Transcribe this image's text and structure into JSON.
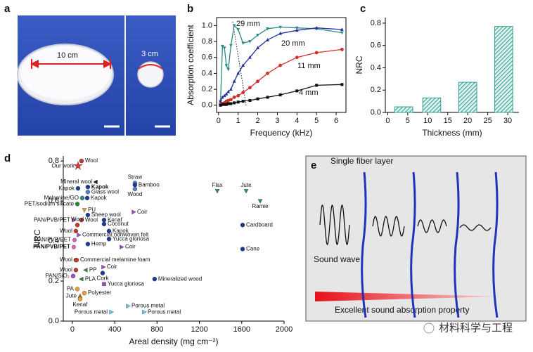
{
  "panel_a": {
    "label": "a",
    "left_size": "10 cm",
    "right_size": "3 cm"
  },
  "chart_data": [
    {
      "type": "line",
      "panel_label": "b",
      "x_label": "Frequency (kHz)",
      "y_label": "Absorption coefficient",
      "x": [
        0.1,
        0.2,
        0.3,
        0.4,
        0.5,
        0.63,
        0.8,
        1.0,
        1.25,
        1.6,
        2.0,
        2.5,
        3.15,
        4.0,
        5.0,
        6.3
      ],
      "series": [
        {
          "name": "29 mm",
          "color": "#2a8c83",
          "marker": "tri-down",
          "values": [
            0.05,
            0.74,
            0.72,
            0.5,
            0.45,
            0.75,
            1.0,
            0.95,
            0.78,
            0.8,
            0.88,
            0.96,
            0.98,
            0.97,
            0.96,
            0.91
          ]
        },
        {
          "name": "20 mm",
          "color": "#1f2fa0",
          "marker": "tri-up",
          "values": [
            0.05,
            0.1,
            0.12,
            0.14,
            0.17,
            0.2,
            0.3,
            0.4,
            0.5,
            0.6,
            0.72,
            0.82,
            0.9,
            0.94,
            0.97,
            0.95
          ]
        },
        {
          "name": "11 mm",
          "color": "#d0302a",
          "marker": "circle",
          "values": [
            0.01,
            0.02,
            0.03,
            0.05,
            0.06,
            0.07,
            0.1,
            0.12,
            0.16,
            0.22,
            0.3,
            0.4,
            0.5,
            0.6,
            0.66,
            0.7
          ]
        },
        {
          "name": "4 mm",
          "color": "#111111",
          "marker": "square",
          "values": [
            0.0,
            0.01,
            0.01,
            0.01,
            0.02,
            0.02,
            0.03,
            0.04,
            0.05,
            0.06,
            0.08,
            0.1,
            0.13,
            0.18,
            0.25,
            0.26
          ]
        }
      ],
      "xlim": [
        -0.1,
        6.5
      ],
      "xticks": [
        0,
        1,
        2,
        3,
        4,
        5,
        6
      ],
      "ylim": [
        -0.09,
        1.1
      ],
      "yticks": [
        {
          "value": 0,
          "label": "0.0"
        },
        0.2,
        0.4,
        0.6,
        0.8,
        {
          "value": 1,
          "label": "1.0"
        }
      ]
    },
    {
      "type": "bar",
      "panel_label": "c",
      "x_label": "Thickness (mm)",
      "y_label": "NRC",
      "color": "#2a9d8f",
      "x": [
        4,
        11,
        20,
        29
      ],
      "values": [
        0.05,
        0.13,
        0.27,
        0.77
      ],
      "xlim": [
        -0.6,
        32.8
      ],
      "xticks": [
        0,
        5,
        10,
        15,
        20,
        25,
        30
      ],
      "ylim": [
        0,
        0.85
      ],
      "yticks": [
        {
          "value": 0,
          "label": "0.0"
        },
        0.2,
        0.4,
        0.6,
        0.8
      ]
    },
    {
      "type": "scatter",
      "panel_label": "d",
      "x_label": "Areal density (mg cm⁻²)",
      "y_label": "NRC",
      "xlim": [
        -86,
        2000
      ],
      "xticks": [
        0,
        400,
        800,
        1200,
        1600,
        2000
      ],
      "ylim": [
        0,
        0.825
      ],
      "yticks": [
        {
          "value": 0,
          "label": "0.0"
        },
        0.2,
        0.4,
        0.6,
        0.8
      ],
      "points": [
        {
          "label": "Our work",
          "x": 53,
          "y": 0.775,
          "color": "#e53030",
          "marker": "star"
        },
        {
          "label": "Wool",
          "x": 86,
          "y": 0.8,
          "color": "#c0392b",
          "marker": "circle"
        },
        {
          "label": "Mineral wool",
          "x": 220,
          "y": 0.695,
          "color": "#222222",
          "marker": "tri-left"
        },
        {
          "label": "Kapok",
          "x": 146,
          "y": 0.67,
          "color": "#1f3a93",
          "marker": "circle"
        },
        {
          "label": "Kapok",
          "x": 53,
          "y": 0.663,
          "color": "#1f3a93",
          "marker": "circle"
        },
        {
          "label": "Glass wool",
          "x": 146,
          "y": 0.645,
          "color": "#5a7fc0",
          "marker": "circle"
        },
        {
          "label": "Straw",
          "x": 591,
          "y": 0.69,
          "color": "#5a7fc0",
          "marker": "circle"
        },
        {
          "label": "Bamboo",
          "x": 591,
          "y": 0.68,
          "color": "#1f3a93",
          "marker": "circle"
        },
        {
          "label": "Wood",
          "x": 591,
          "y": 0.66,
          "color": "#5a7fc0",
          "marker": "circle"
        },
        {
          "label": "Melamine/GO",
          "x": 93,
          "y": 0.615,
          "color": "#2a8c83",
          "marker": "circle"
        },
        {
          "label": "Kapok",
          "x": 140,
          "y": 0.615,
          "color": "#1f3a93",
          "marker": "circle"
        },
        {
          "label": "PET/sodium silicate",
          "x": 47,
          "y": 0.585,
          "color": "#2e8b2e",
          "marker": "circle"
        },
        {
          "label": "Flax",
          "x": 1369,
          "y": 0.65,
          "color": "#2a8c83",
          "marker": "tri-down"
        },
        {
          "label": "Jute",
          "x": 1641,
          "y": 0.65,
          "color": "#2a8c83",
          "marker": "tri-down"
        },
        {
          "label": "Ramie",
          "x": 1774,
          "y": 0.6,
          "color": "#2a8c83",
          "marker": "tri-down"
        },
        {
          "label": "PU",
          "x": 113,
          "y": 0.555,
          "color": "#e8a030",
          "marker": "tri-down"
        },
        {
          "label": "Coir",
          "x": 578,
          "y": 0.545,
          "color": "#9b4fc4",
          "marker": "tri-right"
        },
        {
          "label": "Sheep wool",
          "x": 146,
          "y": 0.53,
          "color": "#1f3a93",
          "marker": "circle"
        },
        {
          "label": "PAN/PVB/PET",
          "x": 13,
          "y": 0.505,
          "color": "#9b4fc4",
          "marker": "tri-right"
        },
        {
          "label": "Wool",
          "x": 86,
          "y": 0.505,
          "color": "#c0392b",
          "marker": "circle"
        },
        {
          "label": "Kenaf",
          "x": 299,
          "y": 0.505,
          "color": "#1f3a93",
          "marker": "circle"
        },
        {
          "label": "Coconut",
          "x": 299,
          "y": 0.485,
          "color": "#1f3a93",
          "marker": "circle"
        },
        {
          "label": "Wool",
          "x": 47,
          "y": 0.48,
          "color": "#c0392b",
          "marker": "circle"
        },
        {
          "label": "Cardboard",
          "x": 1608,
          "y": 0.48,
          "color": "#1f3a93",
          "marker": "circle"
        },
        {
          "label": "Kapok",
          "x": 346,
          "y": 0.45,
          "color": "#1f3a93",
          "marker": "circle"
        },
        {
          "label": "Wool",
          "x": 33,
          "y": 0.45,
          "color": "#c0392b",
          "marker": "circle"
        },
        {
          "label": "Commercial nonwoven felt",
          "x": 60,
          "y": 0.43,
          "color": "#9b4fc4",
          "marker": "tri-right"
        },
        {
          "label": "PAN/PVB/PET",
          "x": 20,
          "y": 0.405,
          "color": "#e060c0",
          "marker": "hexagon"
        },
        {
          "label": "Yucca gloriosa",
          "x": 346,
          "y": 0.41,
          "color": "#1f3a93",
          "marker": "circle"
        },
        {
          "label": "Hemp",
          "x": 146,
          "y": 0.385,
          "color": "#1f3a93",
          "marker": "circle"
        },
        {
          "label": "Coir",
          "x": 465,
          "y": 0.37,
          "color": "#9b4fc4",
          "marker": "tri-right"
        },
        {
          "label": "PAN/PVB/PET",
          "x": 13,
          "y": 0.37,
          "color": "#e060c0",
          "marker": "hexagon"
        },
        {
          "label": "Cane",
          "x": 1608,
          "y": 0.36,
          "color": "#1f3a93",
          "marker": "circle"
        },
        {
          "label": "Wool",
          "x": 33,
          "y": 0.305,
          "color": "#c0392b",
          "marker": "circle"
        },
        {
          "label": "Commercial melamine foam",
          "x": 40,
          "y": 0.305,
          "color": "#c0392b",
          "marker": "circle"
        },
        {
          "label": "Coir",
          "x": 292,
          "y": 0.27,
          "color": "#9b4fc4",
          "marker": "tri-right"
        },
        {
          "label": "Wool",
          "x": 33,
          "y": 0.255,
          "color": "#c0392b",
          "marker": "circle"
        },
        {
          "label": "PP",
          "x": 126,
          "y": 0.255,
          "color": "#2e8b2e",
          "marker": "tri-left"
        },
        {
          "label": "Cork",
          "x": 286,
          "y": 0.24,
          "color": "#1f3a93",
          "marker": "circle"
        },
        {
          "label": "Mineralized wood",
          "x": 777,
          "y": 0.21,
          "color": "#1f3a93",
          "marker": "circle"
        },
        {
          "label": "PAN/SiO₂",
          "x": 7,
          "y": 0.225,
          "color": "#9b4fc4",
          "marker": "circle"
        },
        {
          "label": "PLA",
          "x": 86,
          "y": 0.21,
          "color": "#2e8b2e",
          "marker": "tri-left"
        },
        {
          "label": "Yucca gloriosa",
          "x": 299,
          "y": 0.185,
          "color": "#9b4fc4",
          "marker": "square"
        },
        {
          "label": "PA",
          "x": 47,
          "y": 0.16,
          "color": "#e8a030",
          "marker": "circle"
        },
        {
          "label": "Polyester",
          "x": 113,
          "y": 0.14,
          "color": "#e8a030",
          "marker": "circle"
        },
        {
          "label": "Jute",
          "x": 73,
          "y": 0.125,
          "color": "#9a7a20",
          "marker": "tri-up"
        },
        {
          "label": "Kenaf",
          "x": 73,
          "y": 0.11,
          "color": "#e8a030",
          "marker": "circle"
        },
        {
          "label": "Porous metal",
          "x": 366,
          "y": 0.045,
          "color": "#5bd0e0",
          "marker": "tri-right"
        },
        {
          "label": "Porous metal",
          "x": 525,
          "y": 0.075,
          "color": "#5bd0e0",
          "marker": "tri-right"
        },
        {
          "label": "Porous metal",
          "x": 678,
          "y": 0.045,
          "color": "#5bd0e0",
          "marker": "tri-right"
        }
      ]
    }
  ],
  "panel_e": {
    "label": "e",
    "title": "Single fiber layer",
    "wave_label": "Sound wave",
    "caption": "Excellent sound absorption property"
  },
  "watermark": "材料科学与工程"
}
